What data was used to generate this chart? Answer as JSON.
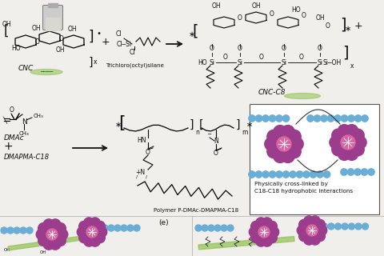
{
  "bg_color": "#f0efeb",
  "text_color": "#111111",
  "green_color": "#90c050",
  "blue_color": "#6aaed6",
  "purple_color": "#9b3d8c",
  "pink_color": "#d966a0",
  "white_color": "#ffffff",
  "box_edge": "#555555",
  "arrow_color": "#111111",
  "label_fs": 6.5,
  "small_fs": 5.5,
  "figure_width": 4.8,
  "figure_height": 3.2,
  "dpi": 100,
  "crosslink_line1": "Physically cross-linked by",
  "crosslink_line2": "C18-C18 hydrophobic interactions",
  "polymer_label": "Polymer P-DMAc-DMAPMA-C18",
  "panel_e": "(e)"
}
